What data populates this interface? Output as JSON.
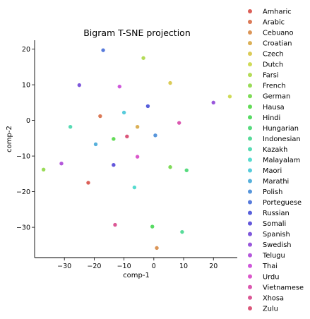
{
  "chart_data": {
    "type": "scatter",
    "title": "Bigram T-SNE projection",
    "xlabel": "comp-1",
    "ylabel": "comp-2",
    "xlim": [
      -40,
      28
    ],
    "ylim": [
      -38.5,
      22.5
    ],
    "xticks": [
      -30,
      -20,
      -10,
      0,
      10,
      20
    ],
    "yticks": [
      20,
      10,
      0,
      -10,
      -20,
      -30
    ],
    "grid": false,
    "legend_position": "right",
    "series": [
      {
        "name": "Amharic",
        "color": "#db5f57",
        "x": -22,
        "y": -17.5
      },
      {
        "name": "Arabic",
        "color": "#db7a57",
        "x": -18,
        "y": 1.2
      },
      {
        "name": "Cebuano",
        "color": "#db9557",
        "x": 1,
        "y": -35.8
      },
      {
        "name": "Croatian",
        "color": "#dbb057",
        "x": -5.5,
        "y": -1.8
      },
      {
        "name": "Czech",
        "color": "#dbcb57",
        "x": 5.5,
        "y": 10.5
      },
      {
        "name": "Dutch",
        "color": "#cfdb57",
        "x": 25.5,
        "y": 6.7
      },
      {
        "name": "Farsi",
        "color": "#b4db57",
        "x": -3.5,
        "y": 17.5
      },
      {
        "name": "French",
        "color": "#99db57",
        "x": -37,
        "y": -13.8
      },
      {
        "name": "German",
        "color": "#7edb57",
        "x": 5.5,
        "y": -13.1
      },
      {
        "name": "Hausa",
        "color": "#63db57",
        "x": -13.5,
        "y": -5.2
      },
      {
        "name": "Hindi",
        "color": "#57db63",
        "x": -0.5,
        "y": -29.8
      },
      {
        "name": "Hungarian",
        "color": "#57db7e",
        "x": 11,
        "y": -14
      },
      {
        "name": "Indonesian",
        "color": "#57db99",
        "x": 9.5,
        "y": -31.3
      },
      {
        "name": "Kazakh",
        "color": "#57dbb4",
        "x": -28,
        "y": -1.8
      },
      {
        "name": "Malayalam",
        "color": "#57dbcf",
        "x": -6.5,
        "y": -18.8
      },
      {
        "name": "Maori",
        "color": "#57cbdb",
        "x": -10,
        "y": 2.2
      },
      {
        "name": "Marathi",
        "color": "#57b0db",
        "x": -19.5,
        "y": -6.7
      },
      {
        "name": "Polish",
        "color": "#5795db",
        "x": 0.5,
        "y": -4.2
      },
      {
        "name": "Porteguese",
        "color": "#577adb",
        "x": -17,
        "y": 19.7
      },
      {
        "name": "Russian",
        "color": "#575fdb",
        "x": -2,
        "y": 4
      },
      {
        "name": "Somali",
        "color": "#6357db",
        "x": -13.5,
        "y": -12.5
      },
      {
        "name": "Spanish",
        "color": "#7e57db",
        "x": -25,
        "y": 9.9
      },
      {
        "name": "Swedish",
        "color": "#9957db",
        "x": 20,
        "y": 5
      },
      {
        "name": "Telugu",
        "color": "#b457db",
        "x": -31,
        "y": -12.1
      },
      {
        "name": "Thai",
        "color": "#cf57db",
        "x": -11.5,
        "y": 9.5
      },
      {
        "name": "Urdu",
        "color": "#db57cb",
        "x": -5.5,
        "y": -10.2
      },
      {
        "name": "Vietnamese",
        "color": "#db57b0",
        "x": 8.5,
        "y": -0.7
      },
      {
        "name": "Xhosa",
        "color": "#db5795",
        "x": -13,
        "y": -29.3
      },
      {
        "name": "Zulu",
        "color": "#db577a",
        "x": -9,
        "y": -4.5
      }
    ]
  }
}
